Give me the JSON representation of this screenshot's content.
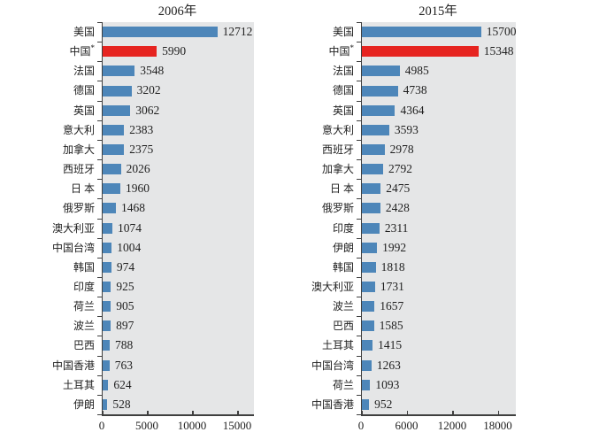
{
  "colors": {
    "bar_blue": "#4d86b9",
    "highlight_red": "#e62420",
    "plot_background": "#e5e6e7",
    "axis": "#3f3f3f",
    "text": "#1f1f1f"
  },
  "chart_data": [
    {
      "type": "bar",
      "orientation": "horizontal",
      "title": "2006年",
      "categories": [
        "美国",
        "中国",
        "法国",
        "德国",
        "英国",
        "意大利",
        "加拿大",
        "西班牙",
        "日 本",
        "俄罗斯",
        "澳大利亚",
        "中国台湾",
        "韩国",
        "印度",
        "荷兰",
        "波兰",
        "巴西",
        "中国香港",
        "土耳其",
        "伊朗"
      ],
      "values": [
        12712,
        5990,
        3548,
        3202,
        3062,
        2383,
        2375,
        2026,
        1960,
        1468,
        1074,
        1004,
        974,
        925,
        905,
        897,
        788,
        763,
        624,
        528
      ],
      "highlight_index": 1,
      "highlight_mark": "*",
      "xticks": [
        0,
        5000,
        10000,
        15000
      ],
      "xlim": [
        0,
        16765
      ],
      "value_labels": true,
      "grid": false,
      "legend": false
    },
    {
      "type": "bar",
      "orientation": "horizontal",
      "title": "2015年",
      "categories": [
        "美国",
        "中国",
        "法国",
        "德国",
        "英国",
        "意大利",
        "西班牙",
        "加拿大",
        "日 本",
        "俄罗斯",
        "印度",
        "伊朗",
        "韩国",
        "澳大利亚",
        "波兰",
        "巴西",
        "土耳其",
        "中国台湾",
        "荷兰",
        "中国香港"
      ],
      "values": [
        15700,
        15348,
        4985,
        4738,
        4364,
        3593,
        2978,
        2792,
        2475,
        2428,
        2311,
        1992,
        1818,
        1731,
        1657,
        1585,
        1415,
        1263,
        1093,
        952
      ],
      "highlight_index": 1,
      "highlight_mark": "*",
      "xticks": [
        0,
        6000,
        12000,
        18000
      ],
      "xlim": [
        0,
        20270
      ],
      "value_labels": true,
      "grid": false,
      "legend": false
    }
  ]
}
